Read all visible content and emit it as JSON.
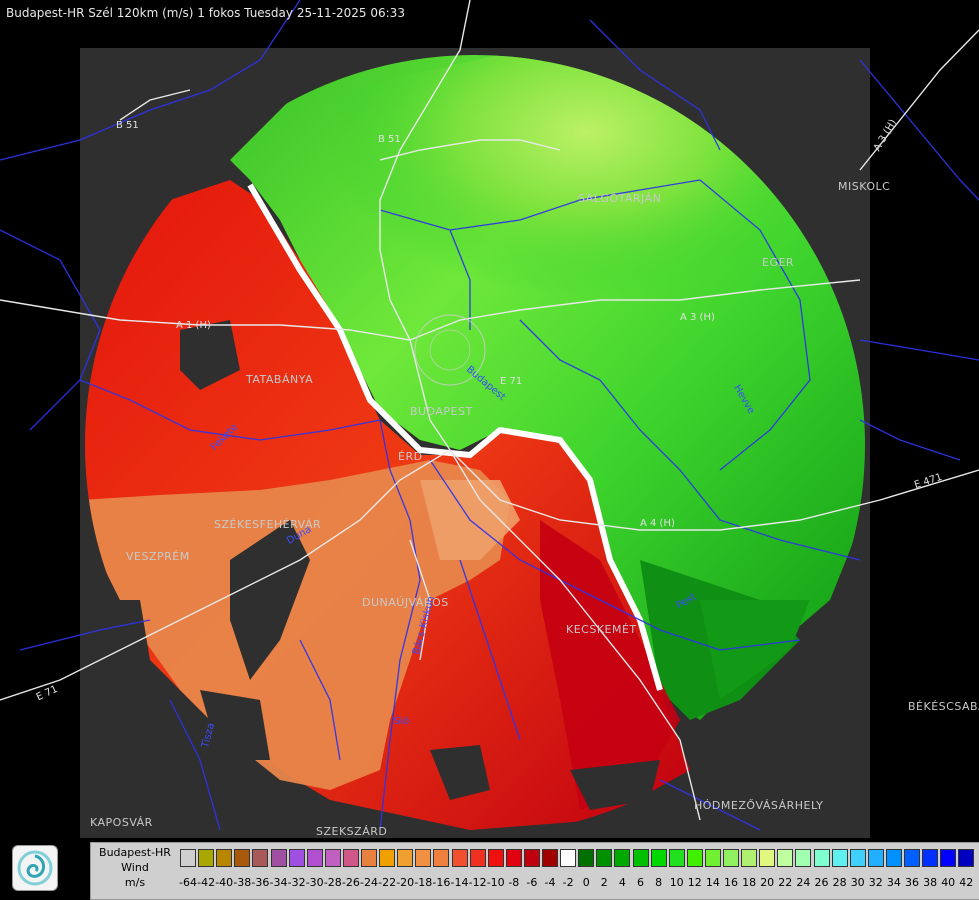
{
  "title": "Budapest-HR Szél 120km (m/s) 1 fokos Tuesday 25-11-2025 06:33",
  "cities": [
    {
      "name": "SALGÓTARJÁN",
      "id": "salgotarjan"
    },
    {
      "name": "MISKOLC",
      "id": "miskolc"
    },
    {
      "name": "EGER",
      "id": "eger"
    },
    {
      "name": "TATABÁNYA",
      "id": "tatabanya"
    },
    {
      "name": "BUDAPEST",
      "id": "budapest"
    },
    {
      "name": "ÉRD",
      "id": "erd"
    },
    {
      "name": "SZÉKESFEHÉRVÁR",
      "id": "szekesfehervar"
    },
    {
      "name": "VESZPRÉM",
      "id": "veszprem"
    },
    {
      "name": "DUNAÚJVÁROS",
      "id": "dunaujvaros"
    },
    {
      "name": "KECSKEMÉT",
      "id": "kecskemet"
    },
    {
      "name": "BÉKÉSCSABA",
      "id": "bekescsaba"
    },
    {
      "name": "HÓDMEZŐVÁSÁRHELY",
      "id": "hodmezovasarhely"
    },
    {
      "name": "KAPOSVÁR",
      "id": "kaposvar"
    },
    {
      "name": "SZEKSZÁRD",
      "id": "szekszard"
    }
  ],
  "roads": [
    {
      "label": "B 51",
      "id": "b51-north",
      "color": "white"
    },
    {
      "label": "B 51",
      "id": "b51-west",
      "color": "white"
    },
    {
      "label": "A 1 (H)",
      "id": "a1",
      "color": "white"
    },
    {
      "label": "Fekete",
      "id": "fekete",
      "color": "blue"
    },
    {
      "label": "A 3 (H)",
      "id": "a3-east",
      "color": "white"
    },
    {
      "label": "A 3 (H)",
      "id": "a3-mid",
      "color": "white"
    },
    {
      "label": "E 71",
      "id": "e71",
      "color": "white"
    },
    {
      "label": "Budapest",
      "id": "budapest-river",
      "color": "blue"
    },
    {
      "label": "Tisza",
      "id": "tisza",
      "color": "blue"
    },
    {
      "label": "Hevve",
      "id": "hevve",
      "color": "blue"
    },
    {
      "label": "E 471",
      "id": "e471",
      "color": "white"
    },
    {
      "label": "A 4 (H)",
      "id": "a4",
      "color": "white"
    },
    {
      "label": "E 71",
      "id": "e71-sw",
      "color": "white"
    },
    {
      "label": "Duna",
      "id": "duna",
      "color": "blue"
    },
    {
      "label": "Sió",
      "id": "sio",
      "color": "blue"
    },
    {
      "label": "Bács-Kiskun",
      "id": "bacs",
      "color": "blue"
    },
    {
      "label": "Pest",
      "id": "pest",
      "color": "blue"
    }
  ],
  "legend": {
    "name_line1": "Budapest-HR",
    "name_line2": "Wind",
    "unit": "m/s",
    "values": [
      "-64",
      "-42",
      "-40",
      "-38",
      "-36",
      "-34",
      "-32",
      "-30",
      "-28",
      "-26",
      "-24",
      "-22",
      "-20",
      "-18",
      "-16",
      "-14",
      "-12",
      "-10",
      "-8",
      "-6",
      "-4",
      "-2",
      "0",
      "2",
      "4",
      "6",
      "8",
      "10",
      "12",
      "14",
      "16",
      "18",
      "20",
      "22",
      "24",
      "26",
      "28",
      "30",
      "32",
      "34",
      "36",
      "38",
      "40",
      "42"
    ],
    "colors": [
      "#cfcfcf",
      "#a8a800",
      "#b88600",
      "#a85a0a",
      "#a85a5a",
      "#a050a0",
      "#a050e0",
      "#b050d0",
      "#c060c0",
      "#d05888",
      "#e88040",
      "#f0a000",
      "#f0a030",
      "#f09040",
      "#f08040",
      "#f05030",
      "#f03020",
      "#f01010",
      "#e00010",
      "#c00010",
      "#a00000",
      "#ffffff",
      "#007000",
      "#009000",
      "#00a800",
      "#00c000",
      "#00d800",
      "#20e020",
      "#40f000",
      "#70f030",
      "#90f060",
      "#b0f070",
      "#e0f880",
      "#c0ffa0",
      "#a0ffb0",
      "#80ffd0",
      "#60f0f0",
      "#40d0ff",
      "#20b0ff",
      "#0090ff",
      "#0060ff",
      "#0030ff",
      "#0000ff",
      "#0000c0"
    ]
  },
  "colors": {
    "background": "#000000",
    "radar_domain": "#2e2e2e",
    "boundary_white": "#ffffff",
    "boundary_blue": "#3333ff",
    "inbound_red": "#e21a0c",
    "outbound_green": "#29d12b"
  },
  "icons": {
    "logo": "omsz-swirl-icon"
  }
}
